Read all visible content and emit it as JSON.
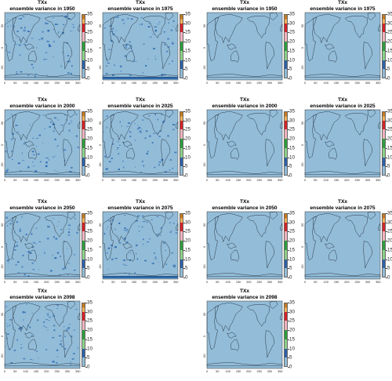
{
  "colors": {
    "map_fill": "#93bcd8",
    "coast": "#1d2c3a",
    "hotspot": "#2f6db2",
    "band_0_5": "#93bcd8",
    "band_5_10": "#2f62a8",
    "band_10_15": "#8fd18a",
    "band_15_20": "#2f9f3e",
    "band_20_25": "#f2b4c0",
    "band_25_30": "#d6232a",
    "band_30_35": "#f0b15c",
    "band_35_plus": "#c77b1e"
  },
  "colorbar": {
    "ticks": [
      "35",
      "30",
      "25",
      "20",
      "15",
      "10",
      "5",
      "0"
    ]
  },
  "axes": {
    "x_ticks": [
      "0",
      "50",
      "100",
      "150",
      "200",
      "250",
      "300",
      "350"
    ],
    "y_ticks": [
      "50",
      "0",
      "-50"
    ]
  },
  "panels": [
    {
      "var": "TXx",
      "title": "ensemble variance in 1950",
      "style": "speckle"
    },
    {
      "var": "TXx",
      "title": "ensemble variance in 1975",
      "style": "speckle-band"
    },
    {
      "var": "TXx",
      "title": "ensemble variance in 1950",
      "style": "clean"
    },
    {
      "var": "TXx",
      "title": "ensemble variance in 1975",
      "style": "clean"
    },
    {
      "var": "TXx",
      "title": "ensemble variance in 2000",
      "style": "speckle"
    },
    {
      "var": "TXx",
      "title": "ensemble variance in 2025",
      "style": "speckle"
    },
    {
      "var": "TXx",
      "title": "ensemble variance in 2000",
      "style": "clean"
    },
    {
      "var": "TXx",
      "title": "ensemble variance in 2025",
      "style": "clean"
    },
    {
      "var": "TXx",
      "title": "ensemble variance in 2050",
      "style": "speckle"
    },
    {
      "var": "TXx",
      "title": "ensemble variance in 2075",
      "style": "speckle-band"
    },
    {
      "var": "TXx",
      "title": "ensemble variance in 2050",
      "style": "clean"
    },
    {
      "var": "TXx",
      "title": "ensemble variance in 2075",
      "style": "clean"
    },
    {
      "var": "TXx",
      "title": "ensemble variance in 2098",
      "style": "speckle"
    },
    {
      "var": "TXx",
      "title": "ensemble variance in 2098",
      "style": "clean"
    }
  ]
}
